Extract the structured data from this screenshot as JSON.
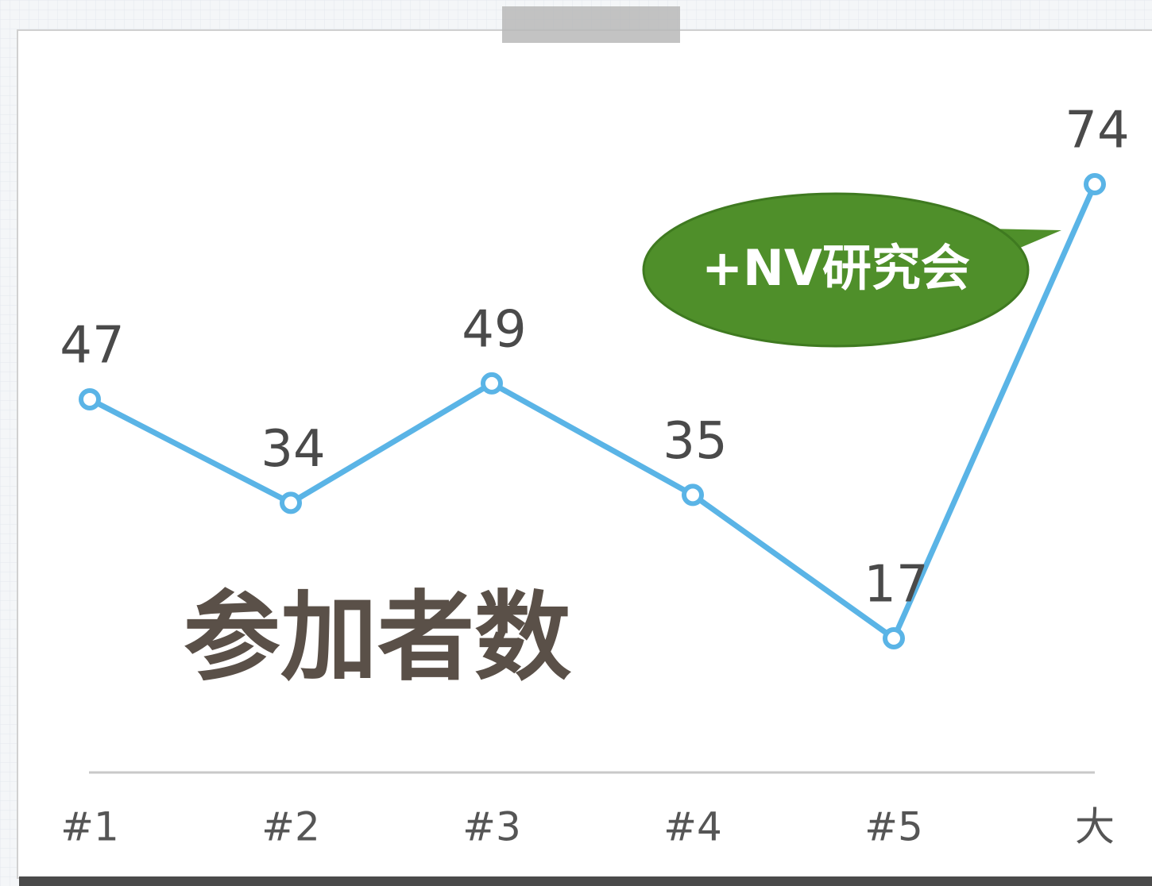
{
  "chart_data": {
    "type": "line",
    "title": "参加者数",
    "categories": [
      "#1",
      "#2",
      "#3",
      "#4",
      "#5",
      "大"
    ],
    "values": [
      47,
      34,
      49,
      35,
      17,
      74
    ],
    "color": "#5ab4e6",
    "annotation": "+NV研究会"
  }
}
